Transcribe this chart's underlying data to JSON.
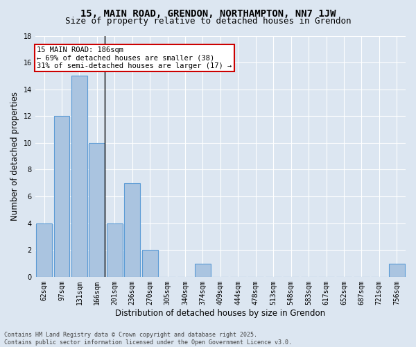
{
  "title": "15, MAIN ROAD, GRENDON, NORTHAMPTON, NN7 1JW",
  "subtitle": "Size of property relative to detached houses in Grendon",
  "xlabel": "Distribution of detached houses by size in Grendon",
  "ylabel": "Number of detached properties",
  "categories": [
    "62sqm",
    "97sqm",
    "131sqm",
    "166sqm",
    "201sqm",
    "236sqm",
    "270sqm",
    "305sqm",
    "340sqm",
    "374sqm",
    "409sqm",
    "444sqm",
    "478sqm",
    "513sqm",
    "548sqm",
    "583sqm",
    "617sqm",
    "652sqm",
    "687sqm",
    "721sqm",
    "756sqm"
  ],
  "values": [
    4,
    12,
    15,
    10,
    4,
    7,
    2,
    0,
    0,
    1,
    0,
    0,
    0,
    0,
    0,
    0,
    0,
    0,
    0,
    0,
    1
  ],
  "bar_color": "#aac4e0",
  "bar_edge_color": "#5b9bd5",
  "highlight_index": 3,
  "highlight_line_color": "#000000",
  "annotation_text": "15 MAIN ROAD: 186sqm\n← 69% of detached houses are smaller (38)\n31% of semi-detached houses are larger (17) →",
  "annotation_box_color": "#ffffff",
  "annotation_box_edge_color": "#cc0000",
  "ylim": [
    0,
    18
  ],
  "yticks": [
    0,
    2,
    4,
    6,
    8,
    10,
    12,
    14,
    16,
    18
  ],
  "background_color": "#dce6f1",
  "grid_color": "#ffffff",
  "footer": "Contains HM Land Registry data © Crown copyright and database right 2025.\nContains public sector information licensed under the Open Government Licence v3.0.",
  "title_fontsize": 10,
  "subtitle_fontsize": 9,
  "xlabel_fontsize": 8.5,
  "ylabel_fontsize": 8.5,
  "tick_fontsize": 7,
  "annotation_fontsize": 7.5,
  "footer_fontsize": 6
}
